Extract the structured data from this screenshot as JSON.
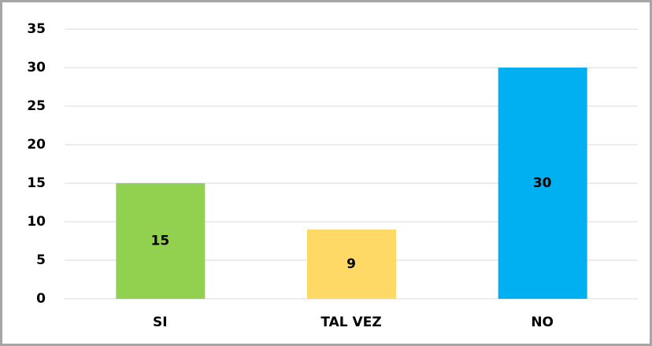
{
  "chart_data": {
    "type": "bar",
    "categories": [
      "SI",
      "TAL VEZ",
      "NO"
    ],
    "values": [
      15,
      9,
      30
    ],
    "colors": [
      "#92d050",
      "#ffd966",
      "#00b0f0"
    ],
    "ylim": [
      0,
      35
    ],
    "yticks": [
      0,
      5,
      10,
      15,
      20,
      25,
      30,
      35
    ],
    "grid": true
  }
}
